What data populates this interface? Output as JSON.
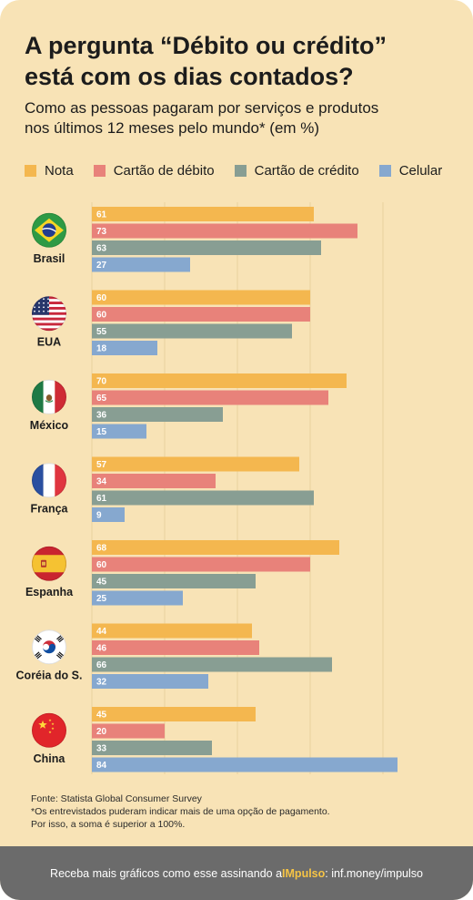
{
  "title_line1": "A pergunta “Débito ou crédito”",
  "title_line2": "está com os dias contados?",
  "subtitle_line1": "Como as pessoas pagaram por serviços e produtos",
  "subtitle_line2": "nos últimos 12 meses pelo mundo* (em %)",
  "colors": {
    "background": "#f8e3b6",
    "Nota": "#f4b74f",
    "Cartão de débito": "#e8827a",
    "Cartão de crédito": "#889e93",
    "Celular": "#86a8cf",
    "gridline": "#e9d29f",
    "footer_bg": "#6b6b6b",
    "brand": "#f6c445"
  },
  "chart_data": {
    "type": "bar",
    "orientation": "horizontal",
    "categories": [
      "Brasil",
      "EUA",
      "México",
      "França",
      "Espanha",
      "Coréia do S.",
      "China"
    ],
    "series": [
      {
        "name": "Nota",
        "values": [
          61,
          60,
          70,
          57,
          68,
          44,
          45
        ]
      },
      {
        "name": "Cartão de débito",
        "values": [
          73,
          60,
          65,
          34,
          60,
          46,
          20
        ]
      },
      {
        "name": "Cartão de crédito",
        "values": [
          63,
          55,
          36,
          61,
          45,
          66,
          33
        ]
      },
      {
        "name": "Celular",
        "values": [
          27,
          18,
          15,
          9,
          25,
          32,
          84
        ]
      }
    ],
    "xlim": [
      0,
      85
    ],
    "grid": true,
    "data_labels": true,
    "legend_position": "top",
    "flag_icons": [
      "brazil-flag-icon",
      "usa-flag-icon",
      "mexico-flag-icon",
      "france-flag-icon",
      "spain-flag-icon",
      "south-korea-flag-icon",
      "china-flag-icon"
    ]
  },
  "footnote": {
    "source": "Fonte: Statista Global Consumer Survey",
    "note_line1": "*Os entrevistados puderam indicar mais de uma opção de pagamento.",
    "note_line2": "Por isso, a soma é superior a 100%."
  },
  "footer": {
    "prefix": "Receba mais gráficos como esse assinando a ",
    "brand": "IMpulso",
    "suffix": ": inf.money/impulso"
  }
}
